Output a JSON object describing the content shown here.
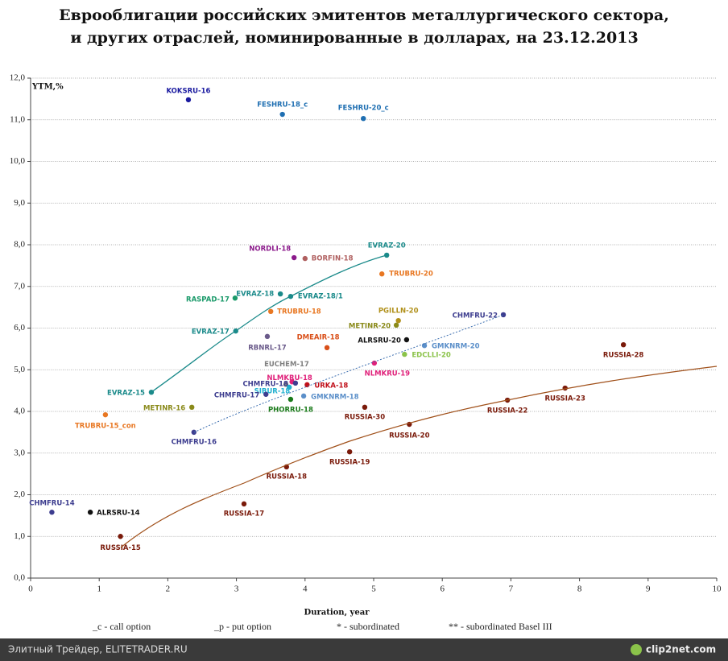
{
  "chart_data": {
    "type": "scatter",
    "title": [
      "Еврооблигации российских эмитентов металлургического сектора,",
      "и других отраслей, номинированные в долларах, на 23.12.2013"
    ],
    "xlabel": "Duration, year",
    "ylabel": "YTM,%",
    "xlim": [
      0,
      10
    ],
    "ylim": [
      0,
      12
    ],
    "xticks": [
      0,
      1,
      2,
      3,
      4,
      5,
      6,
      7,
      8,
      9,
      10
    ],
    "yticks": [
      {
        "value": 0,
        "label": "0,0"
      },
      {
        "value": 1,
        "label": "1,0"
      },
      {
        "value": 2,
        "label": "2,0"
      },
      {
        "value": 3,
        "label": "3,0"
      },
      {
        "value": 4,
        "label": "4,0"
      },
      {
        "value": 5,
        "label": "5,0"
      },
      {
        "value": 6,
        "label": "6,0"
      },
      {
        "value": 7,
        "label": "7,0"
      },
      {
        "value": 8,
        "label": "8,0"
      },
      {
        "value": 9,
        "label": "9,0"
      },
      {
        "value": 10,
        "label": "10,0"
      },
      {
        "value": 11,
        "label": "11,0"
      },
      {
        "value": 12,
        "label": "12,0"
      }
    ],
    "grid": true,
    "points": [
      {
        "label": "KOKSRU-16",
        "x": 2.3,
        "y": 11.48,
        "color": "#1a1aa0"
      },
      {
        "label": "FESHRU-18_c",
        "x": 3.67,
        "y": 11.13,
        "color": "#1f6fb2"
      },
      {
        "label": "FESHRU-20_c",
        "x": 4.85,
        "y": 11.03,
        "color": "#1f6fb2"
      },
      {
        "label": "NORDLI-18",
        "x": 3.84,
        "y": 7.69,
        "color": "#8b1a8b"
      },
      {
        "label": "BORFIN-18",
        "x": 4.0,
        "y": 7.67,
        "color": "#b06060"
      },
      {
        "label": "EVRAZ-20",
        "x": 5.19,
        "y": 7.75,
        "color": "#1a8a8a"
      },
      {
        "label": "TRUBRU-20",
        "x": 5.12,
        "y": 7.3,
        "color": "#e87722"
      },
      {
        "label": "EVRAZ-18",
        "x": 3.64,
        "y": 6.82,
        "color": "#1a8a8a"
      },
      {
        "label": "EVRAZ-18/1",
        "x": 3.79,
        "y": 6.76,
        "color": "#1a8a8a"
      },
      {
        "label": "RASPAD-17",
        "x": 2.98,
        "y": 6.72,
        "color": "#1a9a6a"
      },
      {
        "label": "TRUBRU-18",
        "x": 3.5,
        "y": 6.4,
        "color": "#e87722"
      },
      {
        "label": "PGILLN-20",
        "x": 5.36,
        "y": 6.18,
        "color": "#b0901a"
      },
      {
        "label": "METINR-20",
        "x": 5.33,
        "y": 6.07,
        "color": "#8a8a1a"
      },
      {
        "label": "CHMFRU-22",
        "x": 6.89,
        "y": 6.32,
        "color": "#3d3d8f"
      },
      {
        "label": "EVRAZ-17",
        "x": 2.99,
        "y": 5.93,
        "color": "#1a8a8a"
      },
      {
        "label": "RBNRL-17",
        "x": 3.45,
        "y": 5.8,
        "color": "#6a5a8a"
      },
      {
        "label": "ALRSRU-20",
        "x": 5.48,
        "y": 5.72,
        "color": "#111111"
      },
      {
        "label": "GMKNRM-20",
        "x": 5.74,
        "y": 5.58,
        "color": "#5b8fc9"
      },
      {
        "label": "DMEAIR-18",
        "x": 4.32,
        "y": 5.53,
        "color": "#d9501a"
      },
      {
        "label": "EDCLLI-20",
        "x": 5.45,
        "y": 5.37,
        "color": "#8bc34a"
      },
      {
        "label": "RUSSIA-28",
        "x": 8.64,
        "y": 5.6,
        "color": "#7a1a0a"
      },
      {
        "label": "NLMKRU-19",
        "x": 5.01,
        "y": 5.16,
        "color": "#e0207a"
      },
      {
        "label": "EUCHEM-17",
        "x": 3.72,
        "y": 4.65,
        "color": "#808080"
      },
      {
        "label": "NLMKRU-18",
        "x": 3.81,
        "y": 4.71,
        "color": "#e0207a"
      },
      {
        "label": "CHMFRU-18",
        "x": 3.86,
        "y": 4.68,
        "color": "#3d3d8f"
      },
      {
        "label": "SIBUR-18",
        "x": 3.77,
        "y": 4.58,
        "color": "#20b0d0"
      },
      {
        "label": "URKA-18",
        "x": 4.03,
        "y": 4.64,
        "color": "#c0101a"
      },
      {
        "label": "CHMFRU-17",
        "x": 3.43,
        "y": 4.41,
        "color": "#3d3d8f"
      },
      {
        "label": "GMKNRM-18",
        "x": 3.98,
        "y": 4.37,
        "color": "#5b8fc9"
      },
      {
        "label": "PHORRU-18",
        "x": 3.79,
        "y": 4.29,
        "color": "#1a7a1a"
      },
      {
        "label": "RUSSIA-30",
        "x": 4.87,
        "y": 4.1,
        "color": "#7a1a0a"
      },
      {
        "label": "EVRAZ-15",
        "x": 1.76,
        "y": 4.46,
        "color": "#1a8a8a"
      },
      {
        "label": "METINR-16",
        "x": 2.35,
        "y": 4.1,
        "color": "#8a8a1a"
      },
      {
        "label": "TRUBRU-15_con",
        "x": 1.09,
        "y": 3.92,
        "color": "#e87722"
      },
      {
        "label": "RUSSIA-22",
        "x": 6.95,
        "y": 4.27,
        "color": "#7a1a0a"
      },
      {
        "label": "RUSSIA-23",
        "x": 7.79,
        "y": 4.56,
        "color": "#7a1a0a"
      },
      {
        "label": "RUSSIA-20",
        "x": 5.52,
        "y": 3.69,
        "color": "#7a1a0a"
      },
      {
        "label": "CHMFRU-16",
        "x": 2.38,
        "y": 3.5,
        "color": "#3d3d8f"
      },
      {
        "label": "RUSSIA-19",
        "x": 4.65,
        "y": 3.03,
        "color": "#7a1a0a"
      },
      {
        "label": "RUSSIA-18",
        "x": 3.73,
        "y": 2.67,
        "color": "#7a1a0a"
      },
      {
        "label": "RUSSIA-17",
        "x": 3.11,
        "y": 1.78,
        "color": "#7a1a0a"
      },
      {
        "label": "CHMFRU-14",
        "x": 0.31,
        "y": 1.58,
        "color": "#3d3d8f"
      },
      {
        "label": "ALRSRU-14",
        "x": 0.87,
        "y": 1.58,
        "color": "#111111"
      },
      {
        "label": "RUSSIA-15",
        "x": 1.31,
        "y": 1.0,
        "color": "#7a1a0a"
      }
    ],
    "notes": [
      "_c - call option",
      "_p - put option",
      "* - subordinated",
      "** - subordinated Basel III"
    ],
    "footer": "Элитный Трейдер, ELITETRADER.RU",
    "brand": "clip2net.com"
  }
}
